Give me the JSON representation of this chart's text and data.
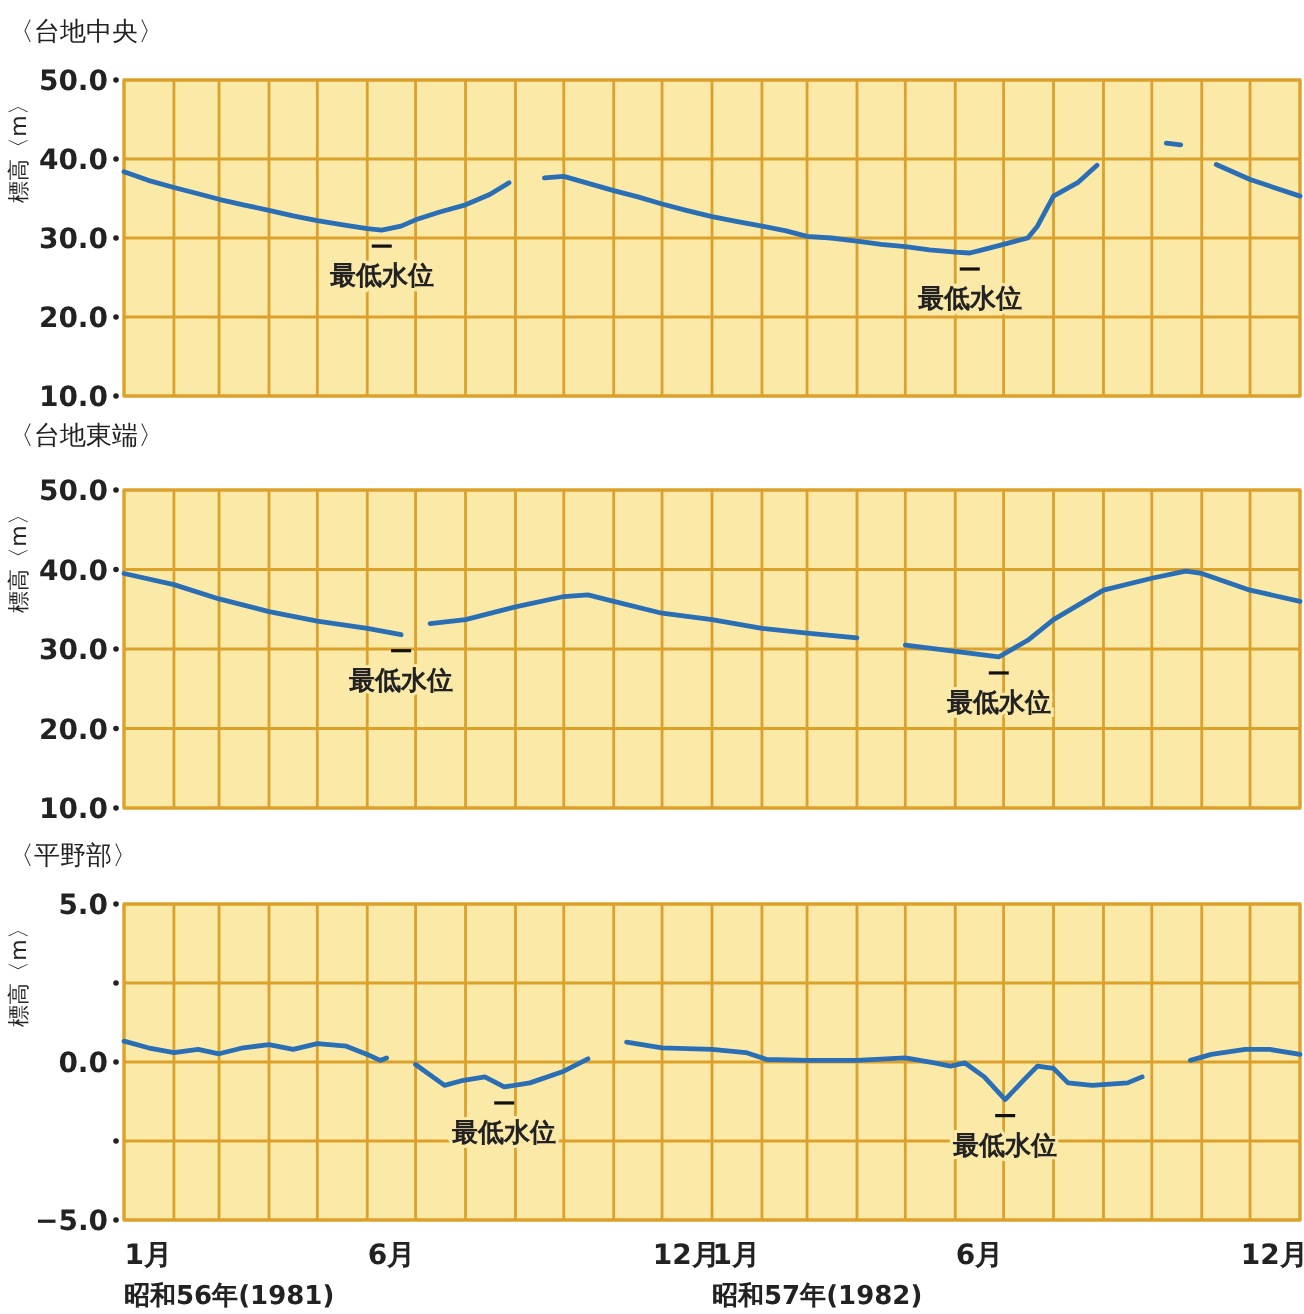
{
  "chart_data": [
    {
      "type": "line",
      "title": "〈台地中央〉",
      "ylabel": "標高〈m〉",
      "xlim": [
        "1981-01-01",
        "1983-01-01"
      ],
      "ylim": [
        10,
        50
      ],
      "yticks": [
        {
          "value": 10,
          "label": "10.0"
        },
        {
          "value": 20,
          "label": "20.0"
        },
        {
          "value": 30,
          "label": "30.0"
        },
        {
          "value": 40,
          "label": "40.0"
        },
        {
          "value": 50,
          "label": "50.0"
        }
      ],
      "xticks": [
        {
          "value": "1981-01-01",
          "label": null
        },
        {
          "value": "1981-02-01",
          "label": null
        },
        {
          "value": "1981-03-01",
          "label": null
        },
        {
          "value": "1981-04-01",
          "label": null
        },
        {
          "value": "1981-05-01",
          "label": null
        },
        {
          "value": "1981-06-01",
          "label": null
        },
        {
          "value": "1981-07-01",
          "label": null
        },
        {
          "value": "1981-08-01",
          "label": null
        },
        {
          "value": "1981-09-01",
          "label": null
        },
        {
          "value": "1981-10-01",
          "label": null
        },
        {
          "value": "1981-11-01",
          "label": null
        },
        {
          "value": "1981-12-01",
          "label": null
        },
        {
          "value": "1982-01-01",
          "label": null
        },
        {
          "value": "1982-02-01",
          "label": null
        },
        {
          "value": "1982-03-01",
          "label": null
        },
        {
          "value": "1982-04-01",
          "label": null
        },
        {
          "value": "1982-05-01",
          "label": null
        },
        {
          "value": "1982-06-01",
          "label": null
        },
        {
          "value": "1982-07-01",
          "label": null
        },
        {
          "value": "1982-08-01",
          "label": null
        },
        {
          "value": "1982-09-01",
          "label": null
        },
        {
          "value": "1982-10-01",
          "label": null
        },
        {
          "value": "1982-11-01",
          "label": null
        },
        {
          "value": "1982-12-01",
          "label": null
        },
        {
          "value": "1983-01-01",
          "label": null
        }
      ],
      "tick_labels": "y",
      "grid": true,
      "series": [
        {
          "color": "#2a6fb5",
          "x": [
            "1981-01-01",
            "1981-01-16",
            "1981-02-01",
            "1981-02-16",
            "1981-03-01",
            "1981-03-16",
            "1981-04-01",
            "1981-04-16",
            "1981-05-01",
            "1981-05-16",
            "1981-06-01",
            "1981-06-10",
            "1981-06-22",
            "1981-07-01",
            "1981-07-16",
            "1981-08-01",
            "1981-08-16",
            "1981-08-28",
            "1981-09-04",
            "1981-09-19",
            "1981-10-01",
            "1981-11-01",
            "1981-11-16",
            "1981-12-01",
            "1981-12-16",
            "1982-01-01",
            "1982-01-16",
            "1982-02-01",
            "1982-02-16",
            "1982-03-01",
            "1982-03-16",
            "1982-04-01",
            "1982-04-16",
            "1982-05-01",
            "1982-05-16",
            "1982-06-01",
            "1982-06-10",
            "1982-06-16",
            "1982-07-01",
            "1982-07-16",
            "1982-07-22",
            "1982-08-01",
            "1982-08-16",
            "1982-08-28",
            "1982-09-10",
            "1982-10-10",
            "1982-10-19",
            "1982-11-01",
            "1982-11-10",
            "1982-12-01",
            "1983-01-01"
          ],
          "values": [
            38.4,
            37.3,
            36.4,
            35.6,
            34.9,
            34.2,
            33.5,
            32.8,
            32.2,
            31.7,
            31.2,
            31.0,
            31.5,
            32.3,
            33.3,
            34.2,
            35.5,
            37.0,
            null,
            37.6,
            37.8,
            36.0,
            35.2,
            34.3,
            33.5,
            32.7,
            32.1,
            31.5,
            30.9,
            30.2,
            30.0,
            29.6,
            29.2,
            28.9,
            28.5,
            28.2,
            28.1,
            28.4,
            29.2,
            30.0,
            31.5,
            35.3,
            37.0,
            39.2,
            null,
            42.0,
            41.8,
            null,
            39.3,
            37.4,
            35.3
          ]
        }
      ],
      "annotations": [
        {
          "text": "最低水位",
          "x": "1981-06-10",
          "y": 31.0
        },
        {
          "text": "最低水位",
          "x": "1982-06-10",
          "y": 28.1
        }
      ]
    },
    {
      "type": "line",
      "title": "〈台地東端〉",
      "ylabel": "標高〈m〉",
      "xlim": [
        "1981-01-01",
        "1983-01-01"
      ],
      "ylim": [
        10,
        50
      ],
      "yticks": [
        {
          "value": 10,
          "label": "10.0"
        },
        {
          "value": 20,
          "label": "20.0"
        },
        {
          "value": 30,
          "label": "30.0"
        },
        {
          "value": 40,
          "label": "40.0"
        },
        {
          "value": 50,
          "label": "50.0"
        }
      ],
      "xticks": [
        {
          "value": "1981-01-01",
          "label": null
        },
        {
          "value": "1981-02-01",
          "label": null
        },
        {
          "value": "1981-03-01",
          "label": null
        },
        {
          "value": "1981-04-01",
          "label": null
        },
        {
          "value": "1981-05-01",
          "label": null
        },
        {
          "value": "1981-06-01",
          "label": null
        },
        {
          "value": "1981-07-01",
          "label": null
        },
        {
          "value": "1981-08-01",
          "label": null
        },
        {
          "value": "1981-09-01",
          "label": null
        },
        {
          "value": "1981-10-01",
          "label": null
        },
        {
          "value": "1981-11-01",
          "label": null
        },
        {
          "value": "1981-12-01",
          "label": null
        },
        {
          "value": "1982-01-01",
          "label": null
        },
        {
          "value": "1982-02-01",
          "label": null
        },
        {
          "value": "1982-03-01",
          "label": null
        },
        {
          "value": "1982-04-01",
          "label": null
        },
        {
          "value": "1982-05-01",
          "label": null
        },
        {
          "value": "1982-06-01",
          "label": null
        },
        {
          "value": "1982-07-01",
          "label": null
        },
        {
          "value": "1982-08-01",
          "label": null
        },
        {
          "value": "1982-09-01",
          "label": null
        },
        {
          "value": "1982-10-01",
          "label": null
        },
        {
          "value": "1982-11-01",
          "label": null
        },
        {
          "value": "1982-12-01",
          "label": null
        },
        {
          "value": "1983-01-01",
          "label": null
        }
      ],
      "tick_labels": "y",
      "grid": true,
      "series": [
        {
          "color": "#2a6fb5",
          "x": [
            "1981-01-01",
            "1981-02-01",
            "1981-03-01",
            "1981-04-01",
            "1981-05-01",
            "1981-06-01",
            "1981-06-22",
            "1981-07-01",
            "1981-07-10",
            "1981-08-01",
            "1981-09-01",
            "1981-10-01",
            "1981-10-16",
            "1981-11-01",
            "1981-12-01",
            "1982-01-01",
            "1982-02-01",
            "1982-03-01",
            "1982-04-01",
            "1982-04-16",
            "1982-05-01",
            "1982-06-01",
            "1982-06-28",
            "1982-07-16",
            "1982-08-01",
            "1982-09-01",
            "1982-10-01",
            "1982-10-22",
            "1982-11-01",
            "1982-12-01",
            "1983-01-01"
          ],
          "values": [
            39.5,
            38.1,
            36.3,
            34.7,
            33.5,
            32.6,
            31.8,
            null,
            33.2,
            33.7,
            35.3,
            36.6,
            36.8,
            36.0,
            34.5,
            33.7,
            32.6,
            32.0,
            31.4,
            null,
            30.5,
            29.7,
            29.0,
            31.1,
            33.7,
            37.4,
            38.9,
            39.8,
            39.5,
            37.4,
            36.0
          ]
        }
      ],
      "annotations": [
        {
          "text": "最低水位",
          "x": "1981-06-22",
          "y": 31.8
        },
        {
          "text": "最低水位",
          "x": "1982-06-28",
          "y": 29.0
        }
      ]
    },
    {
      "type": "line",
      "title": "〈平野部〉",
      "ylabel": "標高〈m〉",
      "xlim": [
        "1981-01-01",
        "1983-01-01"
      ],
      "ylim": [
        -5,
        5
      ],
      "yticks": [
        {
          "value": -5,
          "label": "−5.0"
        },
        {
          "value": -2.5,
          "label": null
        },
        {
          "value": 0,
          "label": "0.0"
        },
        {
          "value": 2.5,
          "label": null
        },
        {
          "value": 5,
          "label": "5.0"
        }
      ],
      "xticks": [
        {
          "value": "1981-01-01",
          "label": null
        },
        {
          "value": "1981-02-01",
          "label": null
        },
        {
          "value": "1981-03-01",
          "label": null
        },
        {
          "value": "1981-04-01",
          "label": null
        },
        {
          "value": "1981-05-01",
          "label": null
        },
        {
          "value": "1981-06-01",
          "label": null
        },
        {
          "value": "1981-07-01",
          "label": null
        },
        {
          "value": "1981-08-01",
          "label": null
        },
        {
          "value": "1981-09-01",
          "label": null
        },
        {
          "value": "1981-10-01",
          "label": null
        },
        {
          "value": "1981-11-01",
          "label": null
        },
        {
          "value": "1981-12-01",
          "label": null
        },
        {
          "value": "1982-01-01",
          "label": null
        },
        {
          "value": "1982-02-01",
          "label": null
        },
        {
          "value": "1982-03-01",
          "label": null
        },
        {
          "value": "1982-04-01",
          "label": null
        },
        {
          "value": "1982-05-01",
          "label": null
        },
        {
          "value": "1982-06-01",
          "label": null
        },
        {
          "value": "1982-07-01",
          "label": null
        },
        {
          "value": "1982-08-01",
          "label": null
        },
        {
          "value": "1982-09-01",
          "label": null
        },
        {
          "value": "1982-10-01",
          "label": null
        },
        {
          "value": "1982-11-01",
          "label": null
        },
        {
          "value": "1982-12-01",
          "label": null
        },
        {
          "value": "1983-01-01",
          "label": null
        },
        {
          "value": "1981-01-16",
          "label": "1月"
        },
        {
          "value": "1981-06-16",
          "label": "6月"
        },
        {
          "value": "1981-12-16",
          "label": "12月"
        },
        {
          "value": "1982-01-16",
          "label": "1月"
        },
        {
          "value": "1982-06-16",
          "label": "6月"
        },
        {
          "value": "1982-12-16",
          "label": "12月"
        }
      ],
      "grid": true,
      "series": [
        {
          "color": "#2a6fb5",
          "x": [
            "1981-01-01",
            "1981-01-16",
            "1981-02-01",
            "1981-02-16",
            "1981-03-01",
            "1981-03-16",
            "1981-04-01",
            "1981-04-16",
            "1981-05-01",
            "1981-05-19",
            "1981-06-01",
            "1981-06-09",
            "1981-06-13",
            "1981-06-22",
            "1981-07-01",
            "1981-07-19",
            "1981-07-29",
            "1981-08-13",
            "1981-08-25",
            "1981-09-10",
            "1981-10-01",
            "1981-10-16",
            "1981-11-01",
            "1981-11-09",
            "1981-12-01",
            "1982-01-01",
            "1982-01-22",
            "1982-02-04",
            "1982-03-01",
            "1982-04-01",
            "1982-05-01",
            "1982-05-19",
            "1982-05-29",
            "1982-06-07",
            "1982-06-19",
            "1982-07-02",
            "1982-07-13",
            "1982-07-22",
            "1982-08-01",
            "1982-08-10",
            "1982-08-25",
            "1982-09-16",
            "1982-09-25",
            "1982-10-07",
            "1982-10-25",
            "1982-11-07",
            "1982-11-28",
            "1982-12-13",
            "1983-01-01"
          ],
          "values": [
            0.66,
            0.45,
            0.3,
            0.4,
            0.26,
            0.45,
            0.55,
            0.4,
            0.58,
            0.5,
            0.24,
            0.05,
            0.13,
            null,
            -0.08,
            -0.74,
            -0.6,
            -0.47,
            -0.79,
            -0.66,
            -0.29,
            0.1,
            null,
            0.63,
            0.45,
            0.4,
            0.3,
            0.08,
            0.05,
            0.05,
            0.13,
            -0.03,
            -0.13,
            -0.03,
            -0.47,
            -1.19,
            -0.6,
            -0.13,
            -0.2,
            -0.66,
            -0.74,
            -0.66,
            -0.47,
            null,
            0.05,
            0.24,
            0.4,
            0.4,
            0.24
          ]
        }
      ],
      "annotations": [
        {
          "text": "最低水位",
          "x": "1981-08-25",
          "y": -0.79
        },
        {
          "text": "最低水位",
          "x": "1982-07-02",
          "y": -1.19
        },
        "昭和56年(1981)",
        "昭和57年(1982)"
      ]
    }
  ]
}
